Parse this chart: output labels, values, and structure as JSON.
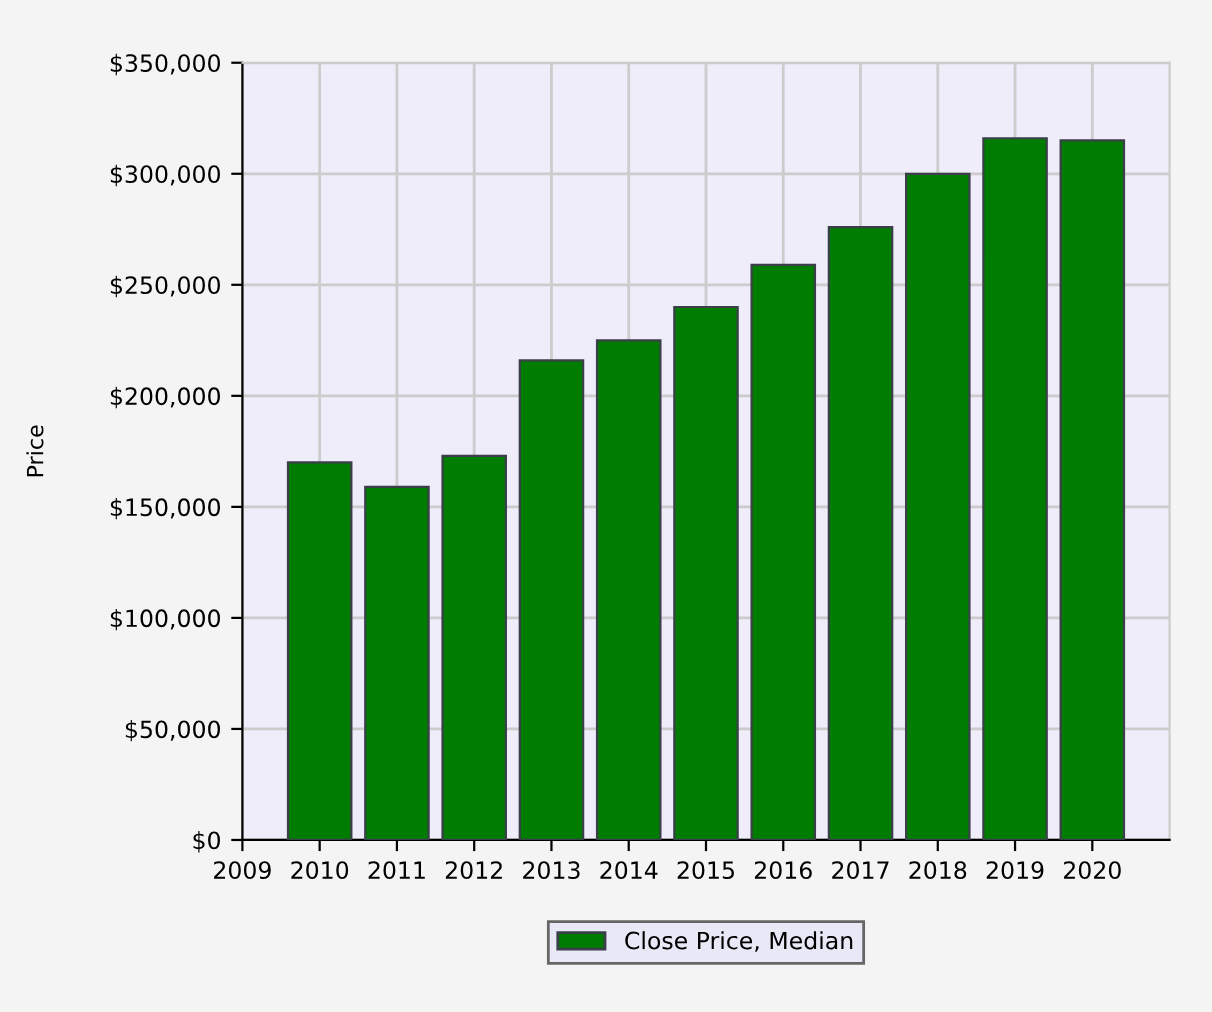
{
  "chart_data": {
    "type": "bar",
    "ylabel": "Price",
    "x": [
      2010,
      2011,
      2012,
      2013,
      2014,
      2015,
      2016,
      2017,
      2018,
      2019,
      2020
    ],
    "series": [
      {
        "name": "Close Price, Median",
        "color": "#007c00",
        "values": [
          170000,
          159000,
          173000,
          216000,
          225000,
          240000,
          259000,
          276000,
          300000,
          316000,
          315000
        ]
      }
    ],
    "xlim": [
      2009,
      2021
    ],
    "xticks": [
      2009,
      2010,
      2011,
      2012,
      2013,
      2014,
      2015,
      2016,
      2017,
      2018,
      2019,
      2020
    ],
    "ylim": [
      0,
      350000
    ],
    "yticks": [
      {
        "value": 0,
        "label": "$0"
      },
      {
        "value": 50000,
        "label": "$50,000"
      },
      {
        "value": 100000,
        "label": "$100,000"
      },
      {
        "value": 150000,
        "label": "$150,000"
      },
      {
        "value": 200000,
        "label": "$200,000"
      },
      {
        "value": 250000,
        "label": "$250,000"
      },
      {
        "value": 300000,
        "label": "$300,000"
      },
      {
        "value": 350000,
        "label": "$350,000"
      }
    ],
    "grid": true,
    "legend": "bottom"
  }
}
